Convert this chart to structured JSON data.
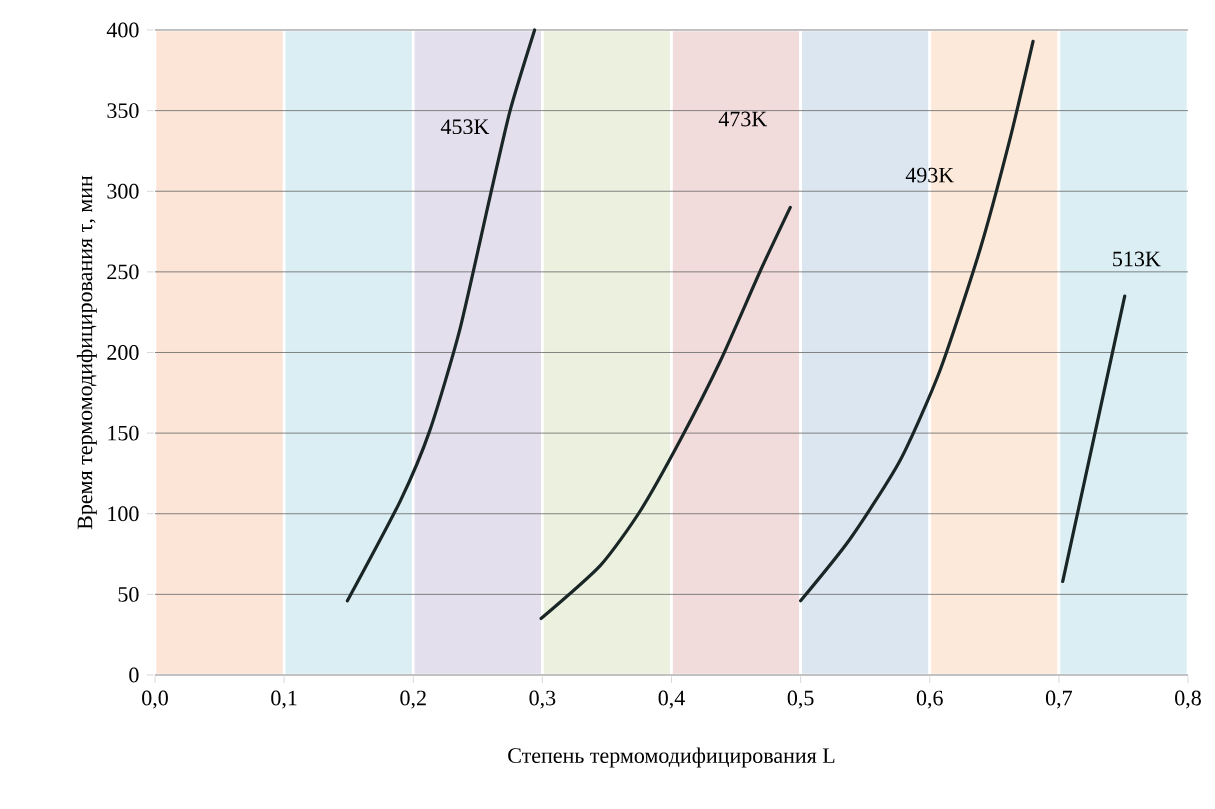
{
  "chart_data": {
    "type": "line",
    "xlabel": "Степень термомодифицирования L",
    "ylabel": "Время термомодифицирования  τ, мин",
    "xlim": [
      0,
      0.8
    ],
    "ylim": [
      0,
      400
    ],
    "xticks": [
      {
        "value": 0,
        "label": "0,0"
      },
      {
        "value": 0.1,
        "label": "0,1"
      },
      {
        "value": 0.2,
        "label": "0,2"
      },
      {
        "value": 0.3,
        "label": "0,3"
      },
      {
        "value": 0.4,
        "label": "0,4"
      },
      {
        "value": 0.5,
        "label": "0,5"
      },
      {
        "value": 0.6,
        "label": "0,6"
      },
      {
        "value": 0.7,
        "label": "0,7"
      },
      {
        "value": 0.8,
        "label": "0,8"
      }
    ],
    "yticks": [
      0,
      50,
      100,
      150,
      200,
      250,
      300,
      350,
      400
    ],
    "grid": "y",
    "series": [
      {
        "color": "#1a2626",
        "x": [
          0.149,
          0.19,
          0.213,
          0.236,
          0.259,
          0.275,
          0.294
        ],
        "values": [
          46,
          108,
          152,
          214,
          295,
          350,
          400
        ]
      },
      {
        "color": "#1a2626",
        "x": [
          0.299,
          0.345,
          0.376,
          0.407,
          0.438,
          0.469,
          0.492
        ],
        "values": [
          35,
          68,
          102,
          146,
          195,
          251,
          290
        ]
      },
      {
        "color": "#1a2626",
        "x": [
          0.5,
          0.538,
          0.577,
          0.608,
          0.639,
          0.662,
          0.68
        ],
        "values": [
          46,
          84,
          133,
          189,
          264,
          332,
          393
        ]
      },
      {
        "color": "#1a2626",
        "x": [
          0.703,
          0.751
        ],
        "values": [
          58,
          235
        ]
      }
    ],
    "bands": [
      {
        "axis": "x",
        "from": 0,
        "to": 0.1,
        "color": "#fce4d6"
      },
      {
        "axis": "x",
        "from": 0.1,
        "to": 0.2,
        "color": "#dbeef3"
      },
      {
        "axis": "x",
        "from": 0.2,
        "to": 0.3,
        "color": "#e4dfec"
      },
      {
        "axis": "x",
        "from": 0.3,
        "to": 0.4,
        "color": "#ebf1de"
      },
      {
        "axis": "x",
        "from": 0.4,
        "to": 0.5,
        "color": "#f2dcdb"
      },
      {
        "axis": "x",
        "from": 0.5,
        "to": 0.6,
        "color": "#dce6f1"
      },
      {
        "axis": "x",
        "from": 0.6,
        "to": 0.7,
        "color": "#fde9d9"
      },
      {
        "axis": "x",
        "from": 0.7,
        "to": 0.8,
        "color": "#daeef3"
      }
    ],
    "annotations": [
      "453K",
      "473K",
      "493K",
      "513K"
    ]
  }
}
